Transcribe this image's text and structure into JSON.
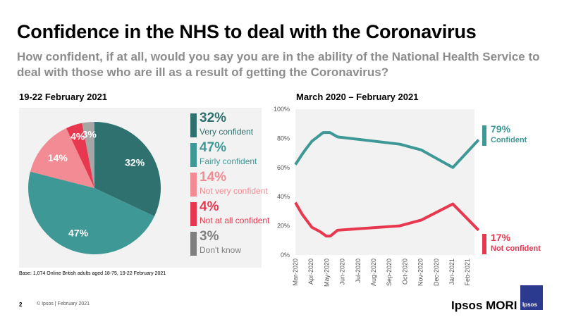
{
  "title": "Confidence in the NHS to deal with the Coronavirus",
  "subtitle": "How confident, if at all, would you say you are in the ability of the National Health Service to deal with those who are ill as a result of getting the Coronavirus?",
  "base": "Base: 1,074 Online British adults aged 18-75, 19-22 February 2021",
  "footer": {
    "page": "2",
    "copyright": "© Ipsos | February 2021"
  },
  "brand": {
    "name": "Ipsos MORI",
    "logo_text": "Ipsos"
  },
  "chart_data": [
    {
      "type": "pie",
      "title": "19-22 February 2021",
      "slices": [
        {
          "name": "Very confident",
          "value": 32,
          "label": "32%",
          "color": "#2f716e"
        },
        {
          "name": "Fairly confident",
          "value": 47,
          "label": "47%",
          "color": "#3e9896"
        },
        {
          "name": "Not very confident",
          "value": 14,
          "label": "14%",
          "color": "#f28b93"
        },
        {
          "name": "Not at all confident",
          "value": 4,
          "label": "4%",
          "color": "#e8384f"
        },
        {
          "name": "Don't know",
          "value": 3,
          "label": "3%",
          "color": "#a6a6a6",
          "legend_color": "#7f7f7f"
        }
      ],
      "legend": "right"
    },
    {
      "type": "line",
      "title": "March 2020 – February 2021",
      "x_ticks": [
        "Mar-2020",
        "Apr-2020",
        "May-2020",
        "Jun-2020",
        "Jul-2020",
        "Aug-2020",
        "Sep-2020",
        "Oct-2020",
        "Nov-2020",
        "Dec-2020",
        "Jan-2021",
        "Feb-2021"
      ],
      "y_ticks": [
        "0%",
        "20%",
        "40%",
        "60%",
        "80%",
        "100%"
      ],
      "ylim": [
        0,
        100
      ],
      "series": [
        {
          "name": "Confident",
          "end_label": "79%",
          "color": "#3e9896",
          "points": [
            [
              "2020-03-01",
              62
            ],
            [
              "2020-03-14",
              69
            ],
            [
              "2020-03-20",
              72
            ],
            [
              "2020-04-02",
              78
            ],
            [
              "2020-04-24",
              84
            ],
            [
              "2020-05-07",
              84
            ],
            [
              "2020-05-22",
              81
            ],
            [
              "2020-09-20",
              76
            ],
            [
              "2020-11-01",
              72
            ],
            [
              "2021-01-01",
              60
            ],
            [
              "2021-02-20",
              79
            ]
          ]
        },
        {
          "name": "Not confident",
          "end_label": "17%",
          "color": "#e8384f",
          "points": [
            [
              "2020-03-01",
              36
            ],
            [
              "2020-03-14",
              28
            ],
            [
              "2020-04-02",
              19
            ],
            [
              "2020-04-18",
              16
            ],
            [
              "2020-04-30",
              13
            ],
            [
              "2020-05-08",
              13
            ],
            [
              "2020-05-22",
              17
            ],
            [
              "2020-09-20",
              20
            ],
            [
              "2020-11-01",
              24
            ],
            [
              "2021-01-01",
              35
            ],
            [
              "2021-02-20",
              17
            ]
          ]
        }
      ]
    }
  ]
}
